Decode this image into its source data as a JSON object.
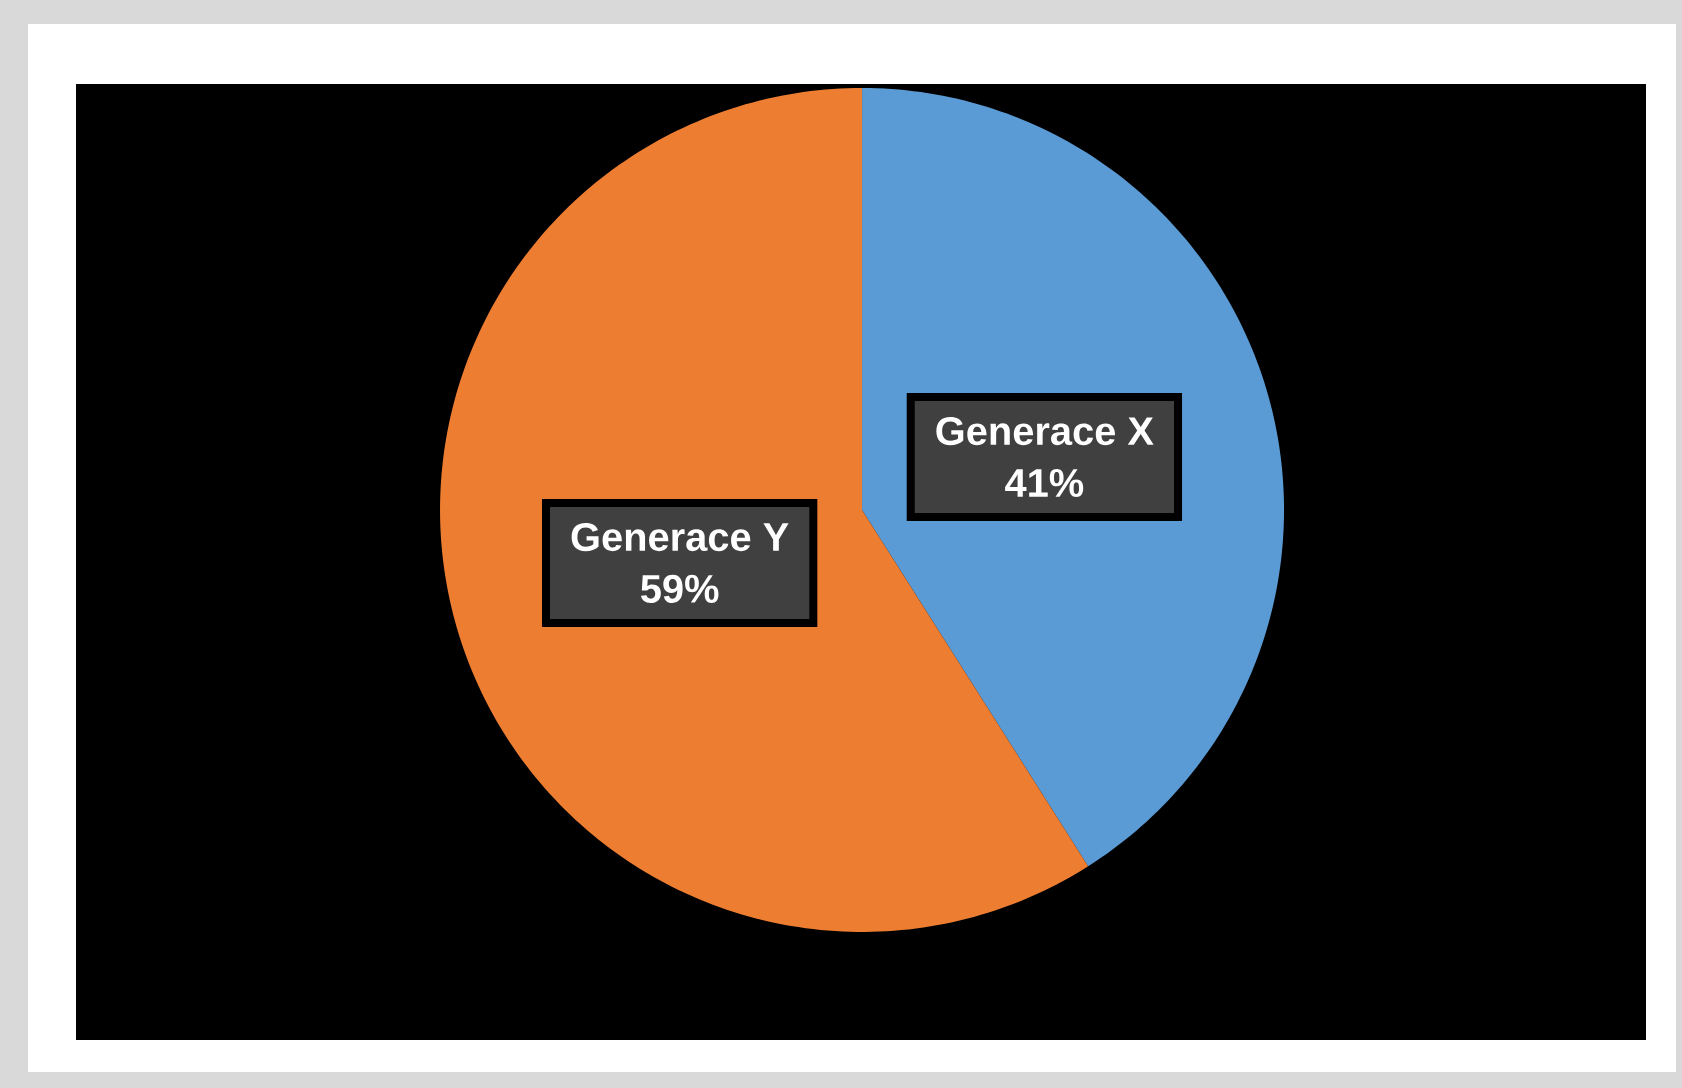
{
  "chart_data": {
    "type": "pie",
    "categories": [
      "Generace X",
      "Generace Y"
    ],
    "values": [
      41,
      59
    ],
    "colors": [
      "#5b9bd5",
      "#ed7d31"
    ],
    "value_labels": [
      "41%",
      "59%"
    ]
  }
}
